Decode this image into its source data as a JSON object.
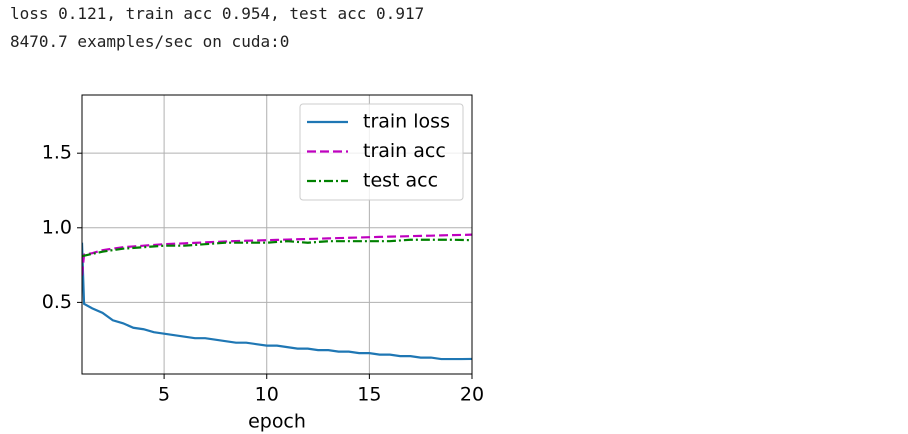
{
  "header": {
    "lines": [
      "loss 0.121, train acc 0.954, test acc 0.917",
      "8470.7 examples/sec on cuda:0"
    ]
  },
  "chart_data": {
    "type": "line",
    "xlabel": "epoch",
    "xlim": [
      1,
      20
    ],
    "ylim": [
      0.02,
      1.89
    ],
    "xticks": [
      5,
      10,
      15,
      20
    ],
    "yticks": [
      0.5,
      {
        "value": 1,
        "label": "1.0"
      },
      1.5
    ],
    "grid": true,
    "legend": "upper right",
    "series": [
      {
        "name": "train loss",
        "color": "#1f77b4",
        "dash": "solid",
        "x": [
          1,
          1.1,
          1.5,
          2,
          2.5,
          3,
          3.5,
          4,
          4.5,
          5,
          5.5,
          6,
          6.5,
          7,
          7.5,
          8,
          8.5,
          9,
          9.5,
          10,
          10.5,
          11,
          11.5,
          12,
          12.5,
          13,
          13.5,
          14,
          14.5,
          15,
          15.5,
          16,
          16.5,
          17,
          17.5,
          18,
          18.5,
          19,
          19.5,
          20
        ],
        "values": [
          0.9,
          0.49,
          0.46,
          0.43,
          0.38,
          0.36,
          0.33,
          0.32,
          0.3,
          0.29,
          0.28,
          0.27,
          0.26,
          0.26,
          0.25,
          0.24,
          0.23,
          0.23,
          0.22,
          0.21,
          0.21,
          0.2,
          0.19,
          0.19,
          0.18,
          0.18,
          0.17,
          0.17,
          0.16,
          0.16,
          0.15,
          0.15,
          0.14,
          0.14,
          0.13,
          0.13,
          0.12,
          0.12,
          0.12,
          0.121
        ]
      },
      {
        "name": "train acc",
        "color": "#bf00bf",
        "dash": "dashed",
        "x": [
          1,
          1.1,
          1.5,
          2,
          2.5,
          3,
          3.5,
          4,
          4.5,
          5,
          5.5,
          6,
          6.5,
          7,
          7.5,
          8,
          8.5,
          9,
          9.5,
          10,
          10.5,
          11,
          11.5,
          12,
          12.5,
          13,
          13.5,
          14,
          14.5,
          15,
          15.5,
          16,
          16.5,
          17,
          17.5,
          18,
          18.5,
          19,
          19.5,
          20
        ],
        "values": [
          0.68,
          0.82,
          0.83,
          0.85,
          0.86,
          0.87,
          0.875,
          0.88,
          0.885,
          0.89,
          0.893,
          0.896,
          0.899,
          0.902,
          0.905,
          0.908,
          0.911,
          0.913,
          0.915,
          0.917,
          0.919,
          0.921,
          0.923,
          0.925,
          0.927,
          0.929,
          0.931,
          0.933,
          0.935,
          0.937,
          0.939,
          0.941,
          0.942,
          0.944,
          0.946,
          0.947,
          0.949,
          0.951,
          0.952,
          0.954
        ]
      },
      {
        "name": "test acc",
        "color": "#008000",
        "dash": "dashdot",
        "x": [
          1,
          2,
          3,
          4,
          5,
          6,
          7,
          8,
          9,
          10,
          11,
          12,
          13,
          14,
          15,
          16,
          17,
          18,
          19,
          20
        ],
        "values": [
          0.81,
          0.84,
          0.86,
          0.87,
          0.88,
          0.88,
          0.89,
          0.9,
          0.9,
          0.9,
          0.91,
          0.9,
          0.91,
          0.91,
          0.91,
          0.91,
          0.92,
          0.92,
          0.92,
          0.917
        ]
      }
    ]
  }
}
